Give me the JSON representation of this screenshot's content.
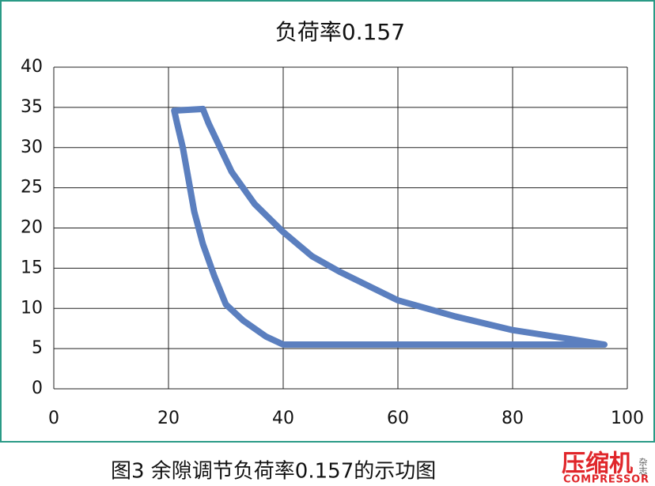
{
  "chart_data": {
    "type": "line",
    "title": "负荷率0.157",
    "x": [
      21,
      26,
      27,
      29,
      31,
      35,
      40,
      45,
      50,
      60,
      70,
      80,
      90,
      96,
      40,
      37,
      33,
      30,
      28,
      26,
      24.5,
      23.5,
      22.5,
      21.5,
      21
    ],
    "series": [
      {
        "color": "#5b7fbf",
        "values": [
          34.6,
          34.8,
          33,
          30,
          27,
          23,
          19.5,
          16.5,
          14.5,
          11,
          9,
          7.3,
          6.2,
          5.5,
          5.5,
          6.5,
          8.5,
          10.5,
          14,
          18,
          22,
          26,
          30,
          33,
          34.6
        ]
      }
    ],
    "xlim": [
      0,
      100
    ],
    "xticks": [
      0,
      20,
      40,
      60,
      80,
      100
    ],
    "ylim": [
      0,
      40
    ],
    "yticks": [
      0,
      5,
      10,
      15,
      20,
      25,
      30,
      35,
      40
    ],
    "grid": true
  },
  "caption": "图3 余隙调节负荷率0.157的示功图",
  "logo": {
    "name": "压缩机",
    "sub": "杂志",
    "english": "COMPRESSOR"
  }
}
